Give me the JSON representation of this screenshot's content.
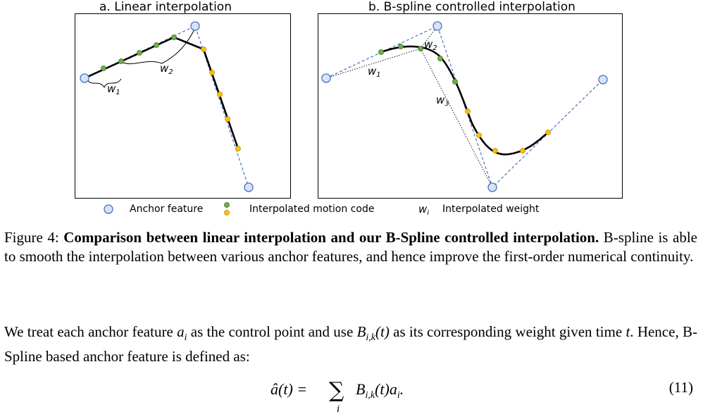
{
  "panels": {
    "a_title": "a. Linear interpolation",
    "b_title": "b. B-spline controlled interpolation",
    "a_labels": {
      "w1": "w",
      "w1_sub": "1",
      "w2": "w",
      "w2_sub": "2"
    },
    "b_labels": {
      "w1": "w",
      "w1_sub": "1",
      "w2": "w",
      "w2_sub": "2",
      "w3": "w",
      "w3_sub": "3"
    }
  },
  "legend": {
    "anchor_feature": "Anchor feature",
    "interpolated_motion_code": "Interpolated motion code",
    "weight_symbol": "w",
    "weight_sub": "i",
    "interpolated_weight": "Interpolated weight"
  },
  "caption": {
    "prefix": "Figure 4:",
    "bold_title": "Comparison between linear interpolation and our B-Spline controlled interpolation.",
    "body": "B-spline is able to smooth the interpolation between various anchor features, and hence improve the first-order numerical continuity."
  },
  "paragraph": {
    "text1": "We treat each anchor feature ",
    "a_i_sym": "a",
    "a_i_sub": "i",
    "text2": " as the control point and use ",
    "B_sym": "B",
    "B_sub": "i,k",
    "B_arg": "(t)",
    "text3": " as its corresponding weight given time ",
    "t_sym": "t",
    "text4": ". Hence, B-Spline based anchor feature is defined as:"
  },
  "equation": {
    "lhs": "â(t) =",
    "sum": "∑",
    "sum_index": "i",
    "rhs_B": "B",
    "rhs_B_sub": "i,k",
    "rhs_arg": "(t)a",
    "rhs_a_sub": "i",
    "rhs_end": ".",
    "number": "(11)"
  },
  "colors": {
    "anchor_fill": "#dae3f3",
    "anchor_stroke": "#4472c4",
    "green_point": "#70ad47",
    "yellow_point": "#ffc000",
    "dashed_line": "#4472c4"
  }
}
